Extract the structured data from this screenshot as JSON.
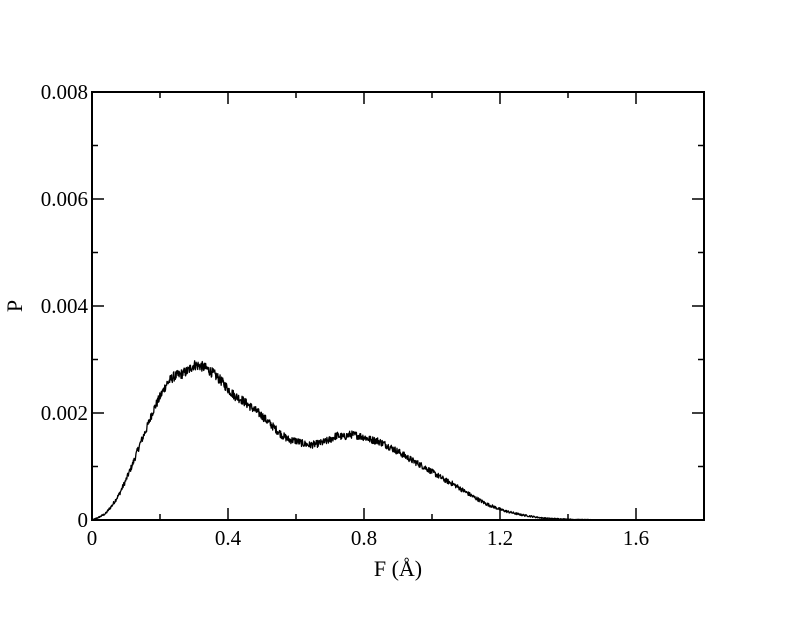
{
  "chart_data": {
    "type": "line",
    "title": "",
    "xlabel": "F (Å)",
    "ylabel": "P",
    "xlim": [
      0,
      1.8
    ],
    "ylim": [
      0,
      0.008
    ],
    "xticks": [
      0,
      0.4,
      0.8,
      1.2,
      1.6
    ],
    "xtick_labels": [
      "0",
      "0.4",
      "0.8",
      "1.2",
      "1.6"
    ],
    "yticks": [
      0,
      0.002,
      0.004,
      0.006,
      0.008
    ],
    "ytick_labels": [
      "0",
      "0.002",
      "0.004",
      "0.006",
      "0.008"
    ],
    "grid": false,
    "legend": "none",
    "line_color": "#000000",
    "series": [
      {
        "x": [
          0.0,
          0.02,
          0.04,
          0.06,
          0.08,
          0.1,
          0.12,
          0.14,
          0.16,
          0.18,
          0.2,
          0.22,
          0.24,
          0.26,
          0.28,
          0.3,
          0.32,
          0.34,
          0.36,
          0.38,
          0.4,
          0.42,
          0.44,
          0.46,
          0.48,
          0.5,
          0.52,
          0.54,
          0.56,
          0.58,
          0.6,
          0.62,
          0.64,
          0.66,
          0.68,
          0.7,
          0.72,
          0.74,
          0.76,
          0.78,
          0.8,
          0.82,
          0.84,
          0.86,
          0.88,
          0.9,
          0.92,
          0.94,
          0.96,
          0.98,
          1.0,
          1.02,
          1.04,
          1.06,
          1.08,
          1.1,
          1.12,
          1.14,
          1.16,
          1.18,
          1.2,
          1.22,
          1.24,
          1.26,
          1.28,
          1.3,
          1.32,
          1.34,
          1.36,
          1.38,
          1.4,
          1.42,
          1.44,
          1.46,
          1.48,
          1.5,
          1.52,
          1.54,
          1.56
        ],
        "y": [
          0.0,
          5e-05,
          0.00012,
          0.00028,
          0.00048,
          0.00075,
          0.00105,
          0.0014,
          0.0017,
          0.00205,
          0.0023,
          0.00255,
          0.00268,
          0.00272,
          0.00278,
          0.0029,
          0.00288,
          0.00282,
          0.00272,
          0.0026,
          0.00245,
          0.00232,
          0.00225,
          0.00215,
          0.00205,
          0.00195,
          0.00182,
          0.0017,
          0.00158,
          0.0015,
          0.00148,
          0.00143,
          0.0014,
          0.00142,
          0.00145,
          0.0015,
          0.00158,
          0.00155,
          0.0016,
          0.00158,
          0.00155,
          0.0015,
          0.00148,
          0.00142,
          0.00135,
          0.00128,
          0.0012,
          0.00112,
          0.00105,
          0.00098,
          0.0009,
          0.00082,
          0.00074,
          0.00068,
          0.0006,
          0.00052,
          0.00044,
          0.00037,
          0.0003,
          0.00025,
          0.0002,
          0.00016,
          0.00013,
          0.0001,
          8e-05,
          6e-05,
          4e-05,
          3e-05,
          2.5e-05,
          2e-05,
          1.5e-05,
          1e-05,
          8e-06,
          6e-06,
          4e-06,
          3e-06,
          2e-06,
          1e-06,
          0.0
        ]
      }
    ]
  }
}
